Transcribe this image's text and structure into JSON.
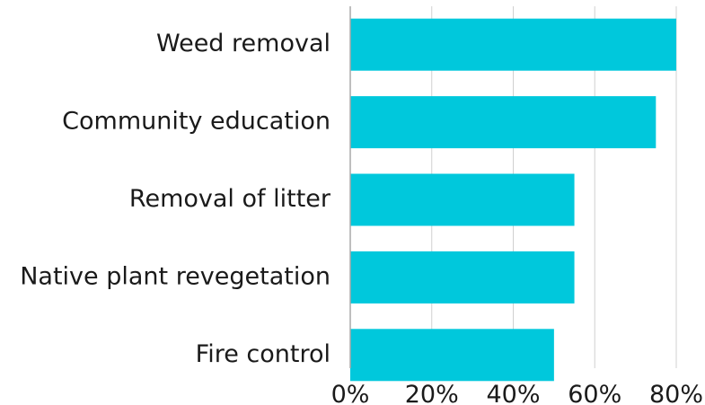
{
  "chart_data": {
    "type": "bar",
    "orientation": "horizontal",
    "categories": [
      "Weed removal",
      "Community education",
      "Removal of litter",
      "Native plant revegetation",
      "Fire control"
    ],
    "values": [
      80,
      75,
      55,
      55,
      50
    ],
    "xlim": [
      0,
      80
    ],
    "x_ticks": [
      "0%",
      "20%",
      "40%",
      "60%",
      "80%"
    ],
    "title": "",
    "xlabel": "",
    "ylabel": "",
    "grid": "vertical",
    "bar_color": "#00C8DC"
  }
}
